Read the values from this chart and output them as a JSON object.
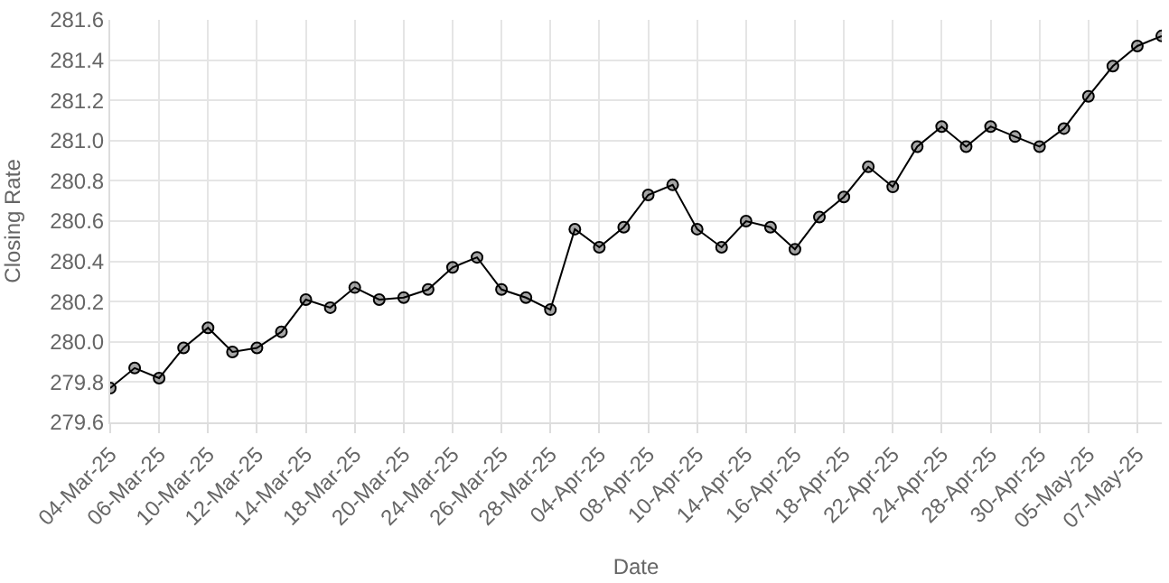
{
  "chart_data": {
    "type": "line",
    "xlabel": "Date",
    "ylabel": "Closing Rate",
    "categories": [
      "04-Mar-25",
      null,
      "06-Mar-25",
      null,
      "10-Mar-25",
      null,
      "12-Mar-25",
      null,
      "14-Mar-25",
      null,
      "18-Mar-25",
      null,
      "20-Mar-25",
      null,
      "24-Mar-25",
      null,
      "26-Mar-25",
      null,
      "28-Mar-25",
      null,
      "04-Apr-25",
      null,
      "08-Apr-25",
      null,
      "10-Apr-25",
      null,
      "14-Apr-25",
      null,
      "16-Apr-25",
      null,
      "18-Apr-25",
      null,
      "22-Apr-25",
      null,
      "24-Apr-25",
      null,
      "28-Apr-25",
      null,
      "30-Apr-25",
      null,
      "05-May-25",
      null,
      "07-May-25",
      null
    ],
    "series": [
      {
        "color": "#000000",
        "values": [
          279.77,
          279.87,
          279.82,
          279.97,
          280.07,
          279.95,
          279.97,
          280.05,
          280.21,
          280.17,
          280.27,
          280.21,
          280.22,
          280.26,
          280.37,
          280.42,
          280.26,
          280.22,
          280.16,
          280.56,
          280.47,
          280.57,
          280.73,
          280.78,
          280.56,
          280.47,
          280.6,
          280.57,
          280.46,
          280.62,
          280.72,
          280.87,
          280.77,
          280.97,
          281.07,
          280.97,
          281.07,
          281.02,
          280.97,
          281.06,
          281.22,
          281.37,
          281.47,
          281.52
        ]
      }
    ],
    "ylim": [
      279.6,
      281.6
    ],
    "yticks": [
      279.6,
      279.8,
      {
        "value": 280,
        "label": "280.0"
      },
      280.2,
      280.4,
      280.6,
      280.8,
      {
        "value": 281,
        "label": "281.0"
      },
      281.2,
      281.4,
      281.6
    ],
    "grid": true,
    "legend": false,
    "marker": "circle",
    "line_style": "solid"
  }
}
